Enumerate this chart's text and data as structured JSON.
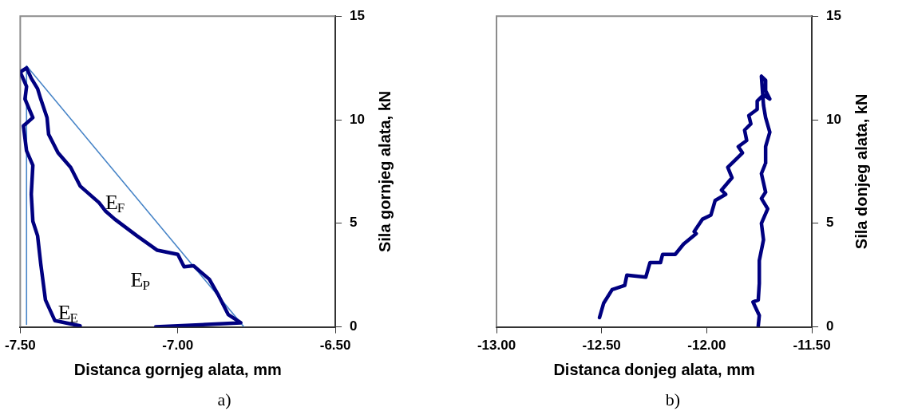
{
  "chart_data": [
    {
      "type": "line",
      "xlabel": "Distanca gornjeg alata, mm",
      "ylabel": "Sila gornjeg alata, kN",
      "xlim": [
        -7.5,
        -6.5
      ],
      "xticks": [
        {
          "value": -7.5,
          "label": "-7.50"
        },
        {
          "value": -7.0,
          "label": "-7.00"
        },
        {
          "value": -6.5,
          "label": "-6.50"
        }
      ],
      "ylim": [
        0,
        15
      ],
      "yticks": [
        0,
        5,
        10,
        15
      ],
      "grid": false,
      "legend": false,
      "marker": "none",
      "line_style": "solid",
      "series": [
        {
          "color": "#000080",
          "x": [
            -7.07,
            -6.8,
            -6.84,
            -6.87,
            -6.9,
            -6.95,
            -6.98,
            -7.0,
            -7.065,
            -7.13,
            -7.2,
            -7.23,
            -7.25,
            -7.31,
            -7.34,
            -7.38,
            -7.41,
            -7.415,
            -7.435,
            -7.445,
            -7.465,
            -7.48,
            -7.5,
            -7.48,
            -7.485,
            -7.46,
            -7.49,
            -7.48,
            -7.46,
            -7.465,
            -7.46,
            -7.445,
            -7.435,
            -7.42,
            -7.39,
            -7.31
          ],
          "values": [
            0,
            0.2,
            0.6,
            1.5,
            2.3,
            2.95,
            2.9,
            3.5,
            3.7,
            4.4,
            5.2,
            5.6,
            6.0,
            6.8,
            7.7,
            8.4,
            9.3,
            10.1,
            11.0,
            11.5,
            12.0,
            12.5,
            12.3,
            11.6,
            11.0,
            10.1,
            9.7,
            8.5,
            7.8,
            6.4,
            5.1,
            4.4,
            3.05,
            1.3,
            0.3,
            0.05
          ]
        },
        {
          "color": "#4a86c8",
          "x": [
            -7.48,
            -7.48,
            -6.79
          ],
          "values": [
            0.12,
            12.6,
            0
          ]
        }
      ],
      "annotations": [
        "E$_{F}$",
        "E$_{P}$",
        "E$_{E}$",
        "a)"
      ]
    },
    {
      "type": "line",
      "xlabel": "Distanca donjeg alata, mm",
      "ylabel": "Sila donjeg alata, kN",
      "xlim": [
        -13.0,
        -11.5
      ],
      "xticks": [
        {
          "value": -13.0,
          "label": "-13.00"
        },
        {
          "value": -12.5,
          "label": "-12.50"
        },
        {
          "value": -12.0,
          "label": "-12.00"
        },
        {
          "value": -11.5,
          "label": "-11.50"
        }
      ],
      "ylim": [
        0,
        15
      ],
      "yticks": [
        0,
        5,
        10,
        15
      ],
      "grid": false,
      "legend": false,
      "marker": "none",
      "line_style": "solid",
      "series": [
        {
          "color": "#000080",
          "x": [
            -12.51,
            -12.49,
            -12.45,
            -12.39,
            -12.38,
            -12.29,
            -12.27,
            -12.22,
            -12.21,
            -12.15,
            -12.11,
            -12.05,
            -12.06,
            -12.02,
            -11.98,
            -11.96,
            -11.91,
            -11.93,
            -11.88,
            -11.9,
            -11.86,
            -11.83,
            -11.85,
            -11.81,
            -11.82,
            -11.79,
            -11.8,
            -11.76,
            -11.76,
            -11.73,
            -11.7,
            -11.72,
            -11.72,
            -11.74,
            -11.73,
            -11.72,
            -11.7,
            -11.72,
            -11.72,
            -11.74,
            -11.72,
            -11.74,
            -11.71,
            -11.74,
            -11.73,
            -11.75,
            -11.75,
            -11.755,
            -11.78,
            -11.75,
            -11.755
          ],
          "values": [
            0.45,
            1.15,
            1.8,
            2.0,
            2.5,
            2.4,
            3.1,
            3.1,
            3.5,
            3.5,
            4.0,
            4.5,
            4.6,
            5.2,
            5.4,
            6.1,
            6.4,
            6.6,
            7.2,
            7.7,
            8.1,
            8.4,
            8.7,
            9.0,
            9.5,
            9.8,
            10.2,
            10.5,
            10.9,
            11.2,
            11.0,
            11.4,
            11.9,
            12.1,
            10.7,
            10.1,
            9.4,
            8.7,
            7.9,
            7.4,
            6.5,
            6.2,
            5.7,
            5.0,
            4.2,
            3.2,
            2.1,
            1.3,
            1.2,
            0.55,
            0.05
          ]
        }
      ],
      "annotations": [
        "b)"
      ]
    }
  ]
}
